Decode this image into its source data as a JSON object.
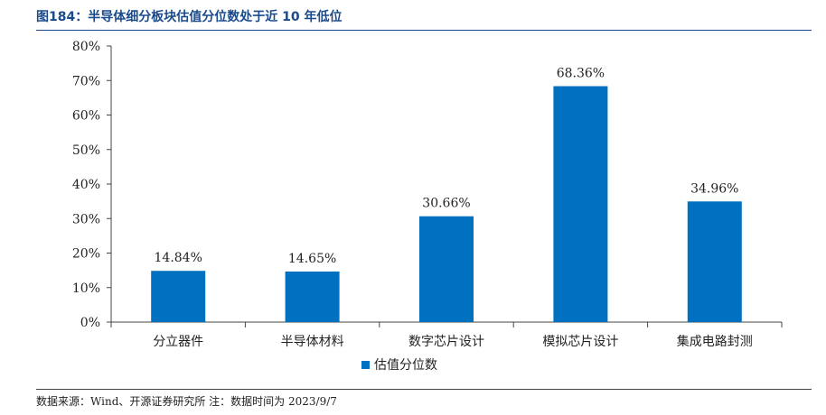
{
  "header": {
    "title": "图184：半导体细分板块估值分位数处于近 10 年低位"
  },
  "footer": {
    "source": "数据来源：Wind、开源证券研究所 注：数据时间为 2023/9/7"
  },
  "colors": {
    "bar": "#0070C0",
    "title": "#1a4a8a",
    "axis": "#444444"
  },
  "chart_data": {
    "type": "bar",
    "categories": [
      "分立器件",
      "半导体材料",
      "数字芯片设计",
      "模拟芯片设计",
      "集成电路封测"
    ],
    "series": [
      {
        "name": "估值分位数",
        "values": [
          14.84,
          14.65,
          30.66,
          68.36,
          34.96
        ]
      }
    ],
    "data_labels": [
      "14.84%",
      "14.65%",
      "30.66%",
      "68.36%",
      "34.96%"
    ],
    "yticks": [
      "0%",
      "10%",
      "20%",
      "30%",
      "40%",
      "50%",
      "60%",
      "70%",
      "80%"
    ],
    "ylim": [
      0,
      80
    ],
    "grid": false,
    "legend": "bottom-center"
  }
}
